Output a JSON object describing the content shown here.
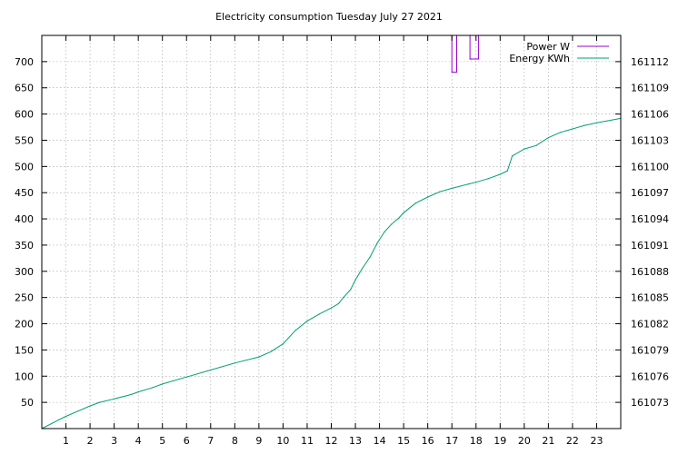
{
  "chart_data": {
    "type": "line",
    "title": "Electricity consumption Tuesday July 27 2021",
    "xlabel": "",
    "ylabel": "",
    "xlim": [
      0,
      24
    ],
    "ylim_left": [
      0,
      750
    ],
    "ylim_right": [
      161070,
      161115
    ],
    "x_tick_labels": [
      "1",
      "2",
      "3",
      "4",
      "5",
      "6",
      "7",
      "8",
      "9",
      "10",
      "11",
      "12",
      "13",
      "14",
      "15",
      "16",
      "17",
      "18",
      "19",
      "20",
      "21",
      "22",
      "23"
    ],
    "y_left_tick_labels": [
      "50",
      "100",
      "150",
      "200",
      "250",
      "300",
      "350",
      "400",
      "450",
      "500",
      "550",
      "600",
      "650",
      "700"
    ],
    "y_right_tick_labels": [
      "161073",
      "161076",
      "161079",
      "161082",
      "161085",
      "161088",
      "161091",
      "161094",
      "161097",
      "161100",
      "161103",
      "161106",
      "161109",
      "161112"
    ],
    "grid": true,
    "legend_position": "top-right",
    "series": [
      {
        "name": "Power W",
        "axis": "left",
        "color": "#9400d3",
        "step": true,
        "x": [
          16.95,
          17.0,
          17.0,
          17.2,
          17.2,
          17.75,
          17.75,
          17.8,
          17.8,
          18.1,
          18.1
        ],
        "y": [
          750,
          750,
          680,
          680,
          750,
          750,
          705,
          705,
          705,
          705,
          750
        ]
      },
      {
        "name": "Energy KWh",
        "axis": "right",
        "color": "#009e73",
        "x": [
          0,
          0.7,
          1,
          1.5,
          2,
          2.4,
          3,
          3.7,
          4,
          4.6,
          5,
          6,
          7,
          8,
          9,
          9.5,
          10,
          10.5,
          11,
          11.5,
          12,
          12.3,
          12.5,
          12.8,
          13,
          13.3,
          13.6,
          13.9,
          14.2,
          14.5,
          14.8,
          15,
          15.5,
          16,
          16.5,
          17,
          17.7,
          18,
          18.5,
          19,
          19.3,
          19.5,
          20,
          20.5,
          21,
          21.5,
          22,
          22.5,
          23,
          24
        ],
        "y": [
          161070.0,
          161071.0,
          161071.4,
          161072.0,
          161072.6,
          161073.0,
          161073.4,
          161073.9,
          161074.2,
          161074.7,
          161075.1,
          161075.9,
          161076.7,
          161077.5,
          161078.2,
          161078.8,
          161079.7,
          161081.2,
          161082.3,
          161083.1,
          161083.8,
          161084.3,
          161085.0,
          161085.9,
          161087.0,
          161088.4,
          161089.6,
          161091.2,
          161092.5,
          161093.4,
          161094.1,
          161094.7,
          161095.8,
          161096.5,
          161097.1,
          161097.5,
          161098.0,
          161098.2,
          161098.6,
          161099.1,
          161099.5,
          161101.2,
          161102.0,
          161102.4,
          161103.3,
          161103.9,
          161104.3,
          161104.7,
          161105.0,
          161105.5
        ]
      }
    ]
  }
}
